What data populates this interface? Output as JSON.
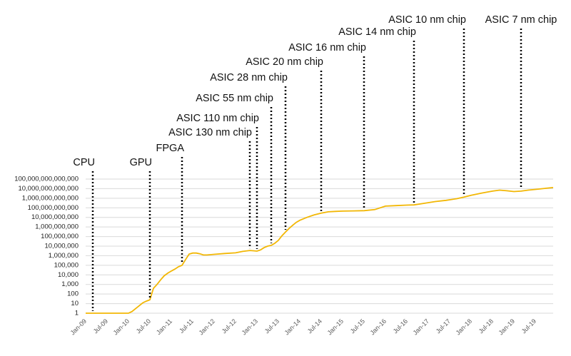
{
  "chart_data": {
    "type": "line",
    "log_scale": true,
    "grid": true,
    "xlim": [
      "Jan-09",
      "Dec-19"
    ],
    "xticks": [
      "Jan-09",
      "Jul-09",
      "Jan-10",
      "Jul-10",
      "Jan-11",
      "Jul-11",
      "Jan-12",
      "Jul-12",
      "Jan-13",
      "Jul-13",
      "Jan-14",
      "Jul-14",
      "Jan-15",
      "Jul-15",
      "Jan-16",
      "Jul-16",
      "Jan-17",
      "Jul-17",
      "Jan-18",
      "Jul-18",
      "Jan-19",
      "Jul-19"
    ],
    "ylim": [
      1,
      100000000000000
    ],
    "yticks": [
      1,
      10,
      100,
      {
        "value": 1000,
        "label": "1,000"
      },
      {
        "value": 10000,
        "label": "10,000"
      },
      {
        "value": 100000,
        "label": "100,000"
      },
      {
        "value": 1000000,
        "label": "1,000,000"
      },
      {
        "value": 10000000,
        "label": "10,000,000"
      },
      {
        "value": 100000000,
        "label": "100,000,000"
      },
      {
        "value": 1000000000,
        "label": "1,000,000,000"
      },
      {
        "value": 10000000000,
        "label": "10,000,000,000"
      },
      {
        "value": 100000000000,
        "label": "100,000,000,000"
      },
      {
        "value": 1000000000000,
        "label": "1,000,000,000,000"
      },
      {
        "value": 10000000000000,
        "label": "10,000,000,000,000"
      },
      {
        "value": 100000000000000,
        "label": "100,000,000,000,000"
      }
    ],
    "series": [
      {
        "color": "#f2b705",
        "x": [
          "Jan-09",
          "Jun-09",
          "Dec-09",
          "Jan-10",
          "Feb-10",
          "Mar-10",
          "Apr-10",
          "May-10",
          "Jun-10",
          "Jul-10",
          "Aug-10",
          "Sep-10",
          "Oct-10",
          "Nov-10",
          "Dec-10",
          "Jan-11",
          "Feb-11",
          "Mar-11",
          "Apr-11",
          "May-11",
          "Jun-11",
          "Jul-11",
          "Aug-11",
          "Sep-11",
          "Oct-11",
          "Nov-11",
          "Jan-12",
          "Apr-12",
          "Jul-12",
          "Sep-12",
          "Nov-12",
          "Dec-12",
          "Jan-13",
          "Feb-13",
          "Mar-13",
          "Apr-13",
          "May-13",
          "Jun-13",
          "Jul-13",
          "Aug-13",
          "Sep-13",
          "Oct-13",
          "Nov-13",
          "Dec-13",
          "Jan-14",
          "Mar-14",
          "May-14",
          "Jul-14",
          "Sep-14",
          "Nov-14",
          "Jan-15",
          "Apr-15",
          "Jul-15",
          "Oct-15",
          "Jan-16",
          "Apr-16",
          "Jul-16",
          "Sep-16",
          "Dec-16",
          "Mar-17",
          "Jun-17",
          "Sep-17",
          "Nov-17",
          "Jan-18",
          "Apr-18",
          "Jul-18",
          "Sep-18",
          "Nov-18",
          "Jan-19",
          "Mar-19",
          "May-19",
          "Aug-19",
          "Oct-19",
          "Dec-19"
        ],
        "values": [
          1,
          1,
          1,
          1,
          1.5,
          3,
          6,
          12,
          18,
          25,
          400,
          1000,
          3000,
          8000,
          15000,
          25000,
          40000,
          70000,
          100000,
          400000,
          1500000,
          1900000,
          1900000,
          1600000,
          1200000,
          1200000,
          1400000,
          1700000,
          2000000,
          2800000,
          3500000,
          3300000,
          3000000,
          4000000,
          7000000,
          10000000,
          12000000,
          20000000,
          40000000,
          120000000,
          300000000,
          700000000,
          1500000000,
          3000000000,
          5000000000,
          10000000000,
          18000000000,
          28000000000,
          38000000000,
          42000000000,
          45000000000,
          48000000000,
          50000000000,
          65000000000,
          150000000000,
          170000000000,
          190000000000,
          200000000000,
          300000000000,
          450000000000,
          600000000000,
          900000000000,
          1300000000000,
          2000000000000,
          3500000000000,
          5500000000000,
          7000000000000,
          6000000000000,
          5000000000000,
          5500000000000,
          7000000000000,
          9000000000000,
          11000000000000,
          13000000000000
        ]
      }
    ],
    "annotations": [
      {
        "text": "CPU",
        "x": "Mar-09"
      },
      {
        "text": "GPU",
        "x": "Jul-10"
      },
      {
        "text": "FPGA",
        "x": "Apr-11"
      },
      {
        "text": "ASIC 130 nm chip",
        "x": "Nov-12"
      },
      {
        "text": "ASIC 110 nm chip",
        "x": "Jan-13"
      },
      {
        "text": "ASIC 55 nm chip",
        "x": "May-13"
      },
      {
        "text": "ASIC 28 nm chip",
        "x": "Sep-13"
      },
      {
        "text": "ASIC 20 nm chip",
        "x": "Jul-14"
      },
      {
        "text": "ASIC 16 nm chip",
        "x": "Jul-15"
      },
      {
        "text": "ASIC 14 nm chip",
        "x": "Sep-16"
      },
      {
        "text": "ASIC 10 nm chip",
        "x": "Nov-17"
      },
      {
        "text": "ASIC 7 nm chip",
        "x": "Mar-19"
      }
    ]
  }
}
